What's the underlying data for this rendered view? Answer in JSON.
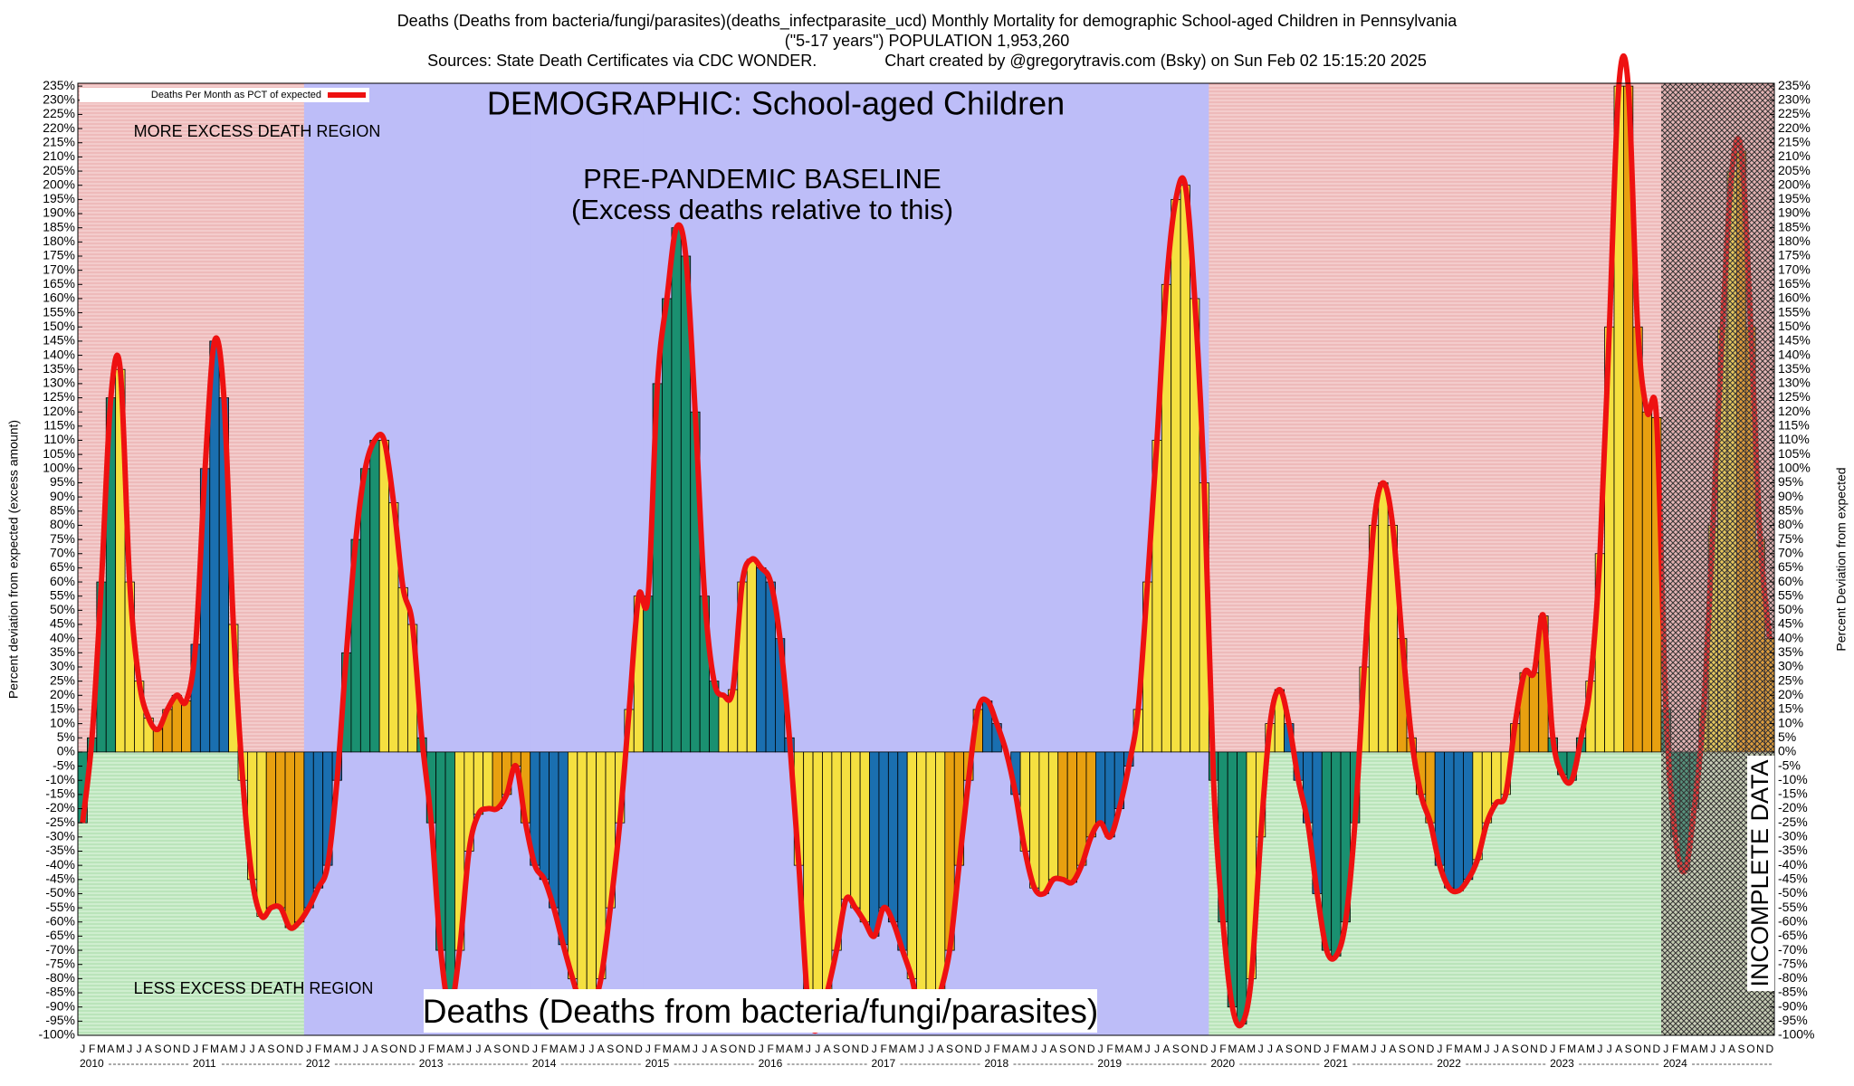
{
  "chart_data": {
    "type": "bar",
    "title_lines": [
      "Deaths (Deaths from bacteria/fungi/parasites)(deaths_infectparasite_ucd) Monthly Mortality for demographic School-aged Children in Pennsylvania",
      "(\"5-17 years\") POPULATION 1,953,260",
      "Sources: State Death Certificates via CDC WONDER.               Chart created by @gregorytravis.com (Bsky) on Sun Feb 02 15:15:20 2025"
    ],
    "demographic": "DEMOGRAPHIC: School-aged Children",
    "bottom_label": "Deaths (Deaths from bacteria/fungi/parasites)",
    "more_label": "MORE EXCESS DEATH REGION",
    "less_label": "LESS EXCESS DEATH REGION",
    "baseline": {
      "label": "PRE-PANDEMIC BASELINE",
      "sublabel": "(Excess deaths relative to this)",
      "years": [
        "2012",
        "2019"
      ]
    },
    "incomplete": {
      "label": "INCOMPLETE DATA",
      "years": [
        "2024",
        "2024"
      ]
    },
    "legend": "Deaths Per Month as PCT of expected",
    "line_color": "#ee1111",
    "ylabel": "Percent deviation from expected (excess amount)",
    "y2label": "Percent Deviation from expected",
    "month_labels": [
      "J",
      "F",
      "M",
      "A",
      "M",
      "J",
      "J",
      "A",
      "S",
      "O",
      "N",
      "D"
    ],
    "year_labels": [
      "2010",
      "2011",
      "2012",
      "2013",
      "2014",
      "2015",
      "2016",
      "2017",
      "2018",
      "2019",
      "2020",
      "2021",
      "2022",
      "2023",
      "2024"
    ],
    "values": [
      -25,
      5,
      60,
      125,
      135,
      60,
      25,
      12,
      8,
      15,
      20,
      18,
      38,
      100,
      145,
      125,
      45,
      -10,
      -45,
      -58,
      -55,
      -55,
      -62,
      -60,
      -55,
      -48,
      -40,
      -10,
      35,
      75,
      100,
      110,
      110,
      88,
      58,
      45,
      5,
      -25,
      -70,
      -90,
      -70,
      -35,
      -22,
      -20,
      -20,
      -15,
      -5,
      -25,
      -40,
      -45,
      -55,
      -68,
      -80,
      -90,
      -90,
      -80,
      -55,
      -25,
      15,
      55,
      55,
      130,
      160,
      185,
      175,
      120,
      55,
      25,
      20,
      22,
      60,
      68,
      65,
      60,
      40,
      5,
      -40,
      -90,
      -98,
      -85,
      -70,
      -52,
      -55,
      -60,
      -65,
      -55,
      -60,
      -70,
      -80,
      -95,
      -95,
      -85,
      -70,
      -40,
      -10,
      15,
      18,
      10,
      0,
      -15,
      -35,
      -48,
      -50,
      -45,
      -45,
      -46,
      -40,
      -30,
      -25,
      -30,
      -20,
      -5,
      15,
      60,
      110,
      165,
      195,
      200,
      160,
      95,
      -10,
      -60,
      -90,
      -96,
      -80,
      -30,
      10,
      22,
      10,
      -10,
      -25,
      -50,
      -70,
      -72,
      -60,
      -25,
      30,
      80,
      95,
      80,
      40,
      5,
      -15,
      -25,
      -40,
      -48,
      -49,
      -45,
      -38,
      -25,
      -18,
      -15,
      10,
      28,
      28,
      48,
      5,
      -8,
      -10,
      5,
      25,
      70,
      150,
      235,
      235,
      150,
      120,
      118,
      15,
      -30,
      -42,
      -20,
      15,
      80,
      150,
      205,
      212,
      150,
      75,
      40
    ],
    "bar_colors": [
      "#1a9070",
      "#f5e040",
      "#e8a010",
      "#1a6fb0",
      "#f5e040",
      "#e8a010",
      "#1a6fb0",
      "#1a9070",
      "#f5e040",
      "#1a9070",
      "#f5e040",
      "#e8a010",
      "#1a6fb0",
      "#f5e040",
      "#f5e040",
      "#1a9070",
      "#1a9070",
      "#f5e040",
      "#1a6fb0",
      "#f5e040",
      "#f5e040",
      "#1a6fb0",
      "#f5e040",
      "#e8a010",
      "#1a6fb0",
      "#f5e040",
      "#e8a010",
      "#1a6fb0",
      "#f5e040",
      "#f5e040",
      "#1a9070",
      "#f5e040",
      "#1a6fb0",
      "#1a9070",
      "#f5e040",
      "#e8a010",
      "#1a6fb0",
      "#f5e040",
      "#e8a010",
      "#1a9070",
      "#f5e040",
      "#e8a010",
      "#1a9070",
      "#f5e040",
      "#e8a010"
    ],
    "ylim": [
      -100,
      236
    ],
    "yticks": [
      {
        "value": -100,
        "label": "-100%"
      },
      {
        "value": -95,
        "label": "-95%"
      },
      {
        "value": -90,
        "label": "-90%"
      },
      {
        "value": -85,
        "label": "-85%"
      },
      {
        "value": -80,
        "label": "-80%"
      },
      {
        "value": -75,
        "label": "-75%"
      },
      {
        "value": -70,
        "label": "-70%"
      },
      {
        "value": -65,
        "label": "-65%"
      },
      {
        "value": -60,
        "label": "-60%"
      },
      {
        "value": -55,
        "label": "-55%"
      },
      {
        "value": -50,
        "label": "-50%"
      },
      {
        "value": -45,
        "label": "-45%"
      },
      {
        "value": -40,
        "label": "-40%"
      },
      {
        "value": -35,
        "label": "-35%"
      },
      {
        "value": -30,
        "label": "-30%"
      },
      {
        "value": -25,
        "label": "-25%"
      },
      {
        "value": -20,
        "label": "-20%"
      },
      {
        "value": -15,
        "label": "-15%"
      },
      {
        "value": -10,
        "label": "-10%"
      },
      {
        "value": -5,
        "label": "-5%"
      },
      {
        "value": 0,
        "label": "0%"
      },
      {
        "value": 5,
        "label": "5%"
      },
      {
        "value": 10,
        "label": "10%"
      },
      {
        "value": 15,
        "label": "15%"
      },
      {
        "value": 20,
        "label": "20%"
      },
      {
        "value": 25,
        "label": "25%"
      },
      {
        "value": 30,
        "label": "30%"
      },
      {
        "value": 35,
        "label": "35%"
      },
      {
        "value": 40,
        "label": "40%"
      },
      {
        "value": 45,
        "label": "45%"
      },
      {
        "value": 50,
        "label": "50%"
      },
      {
        "value": 55,
        "label": "55%"
      },
      {
        "value": 60,
        "label": "60%"
      },
      {
        "value": 65,
        "label": "65%"
      },
      {
        "value": 70,
        "label": "70%"
      },
      {
        "value": 75,
        "label": "75%"
      },
      {
        "value": 80,
        "label": "80%"
      },
      {
        "value": 85,
        "label": "85%"
      },
      {
        "value": 90,
        "label": "90%"
      },
      {
        "value": 95,
        "label": "95%"
      },
      {
        "value": 100,
        "label": "100%"
      },
      {
        "value": 105,
        "label": "105%"
      },
      {
        "value": 110,
        "label": "110%"
      },
      {
        "value": 115,
        "label": "115%"
      },
      {
        "value": 120,
        "label": "120%"
      },
      {
        "value": 125,
        "label": "125%"
      },
      {
        "value": 130,
        "label": "130%"
      },
      {
        "value": 135,
        "label": "135%"
      },
      {
        "value": 140,
        "label": "140%"
      },
      {
        "value": 145,
        "label": "145%"
      },
      {
        "value": 150,
        "label": "150%"
      },
      {
        "value": 155,
        "label": "155%"
      },
      {
        "value": 160,
        "label": "160%"
      },
      {
        "value": 165,
        "label": "165%"
      },
      {
        "value": 170,
        "label": "170%"
      },
      {
        "value": 175,
        "label": "175%"
      },
      {
        "value": 180,
        "label": "180%"
      },
      {
        "value": 185,
        "label": "185%"
      },
      {
        "value": 190,
        "label": "190%"
      },
      {
        "value": 195,
        "label": "195%"
      },
      {
        "value": 200,
        "label": "200%"
      },
      {
        "value": 205,
        "label": "205%"
      },
      {
        "value": 210,
        "label": "210%"
      },
      {
        "value": 215,
        "label": "215%"
      },
      {
        "value": 220,
        "label": "220%"
      },
      {
        "value": 225,
        "label": "225%"
      },
      {
        "value": 230,
        "label": "230%"
      },
      {
        "value": 235,
        "label": "235%"
      }
    ]
  }
}
